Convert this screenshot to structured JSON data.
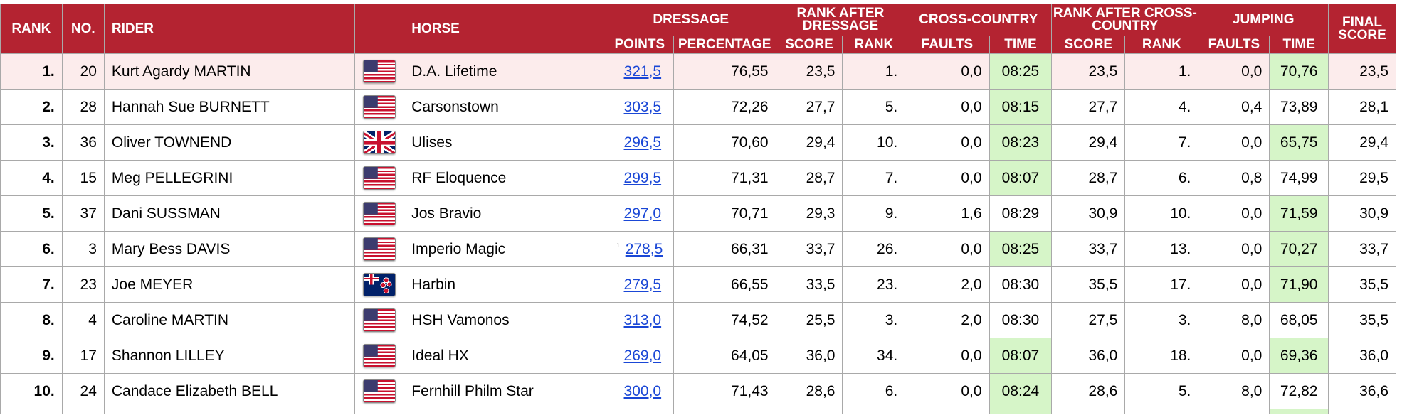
{
  "headers": {
    "rank": "RANK",
    "no": "NO.",
    "rider": "RIDER",
    "horse": "HORSE",
    "dressage": "DRESSAGE",
    "rank_after_dressage": "RANK AFTER DRESSAGE",
    "cross_country": "CROSS-COUNTRY",
    "rank_after_cross_country": "RANK AFTER CROSS-COUNTRY",
    "jumping": "JUMPING",
    "final_score": "FINAL SCORE",
    "sub": {
      "points": "POINTS",
      "percentage": "PERCENTAGE",
      "score": "SCORE",
      "rank": "RANK",
      "faults": "FAULTS",
      "time": "TIME"
    }
  },
  "rows": [
    {
      "rank": "1.",
      "no": "20",
      "rider": "Kurt Agardy MARTIN",
      "flag": "us-flag-icon",
      "horse": "D.A. Lifetime",
      "note": "",
      "points": "321,5",
      "percentage": "76,55",
      "rad_score": "23,5",
      "rad_rank": "1.",
      "xc_faults": "0,0",
      "xc_time": "08:25",
      "xc_time_ok": true,
      "racc_score": "23,5",
      "racc_rank": "1.",
      "j_faults": "0,0",
      "j_time": "70,76",
      "j_time_ok": true,
      "final": "23,5",
      "highlight": true
    },
    {
      "rank": "2.",
      "no": "28",
      "rider": "Hannah Sue BURNETT",
      "flag": "us-flag-icon",
      "horse": "Carsonstown",
      "note": "",
      "points": "303,5",
      "percentage": "72,26",
      "rad_score": "27,7",
      "rad_rank": "5.",
      "xc_faults": "0,0",
      "xc_time": "08:15",
      "xc_time_ok": true,
      "racc_score": "27,7",
      "racc_rank": "4.",
      "j_faults": "0,4",
      "j_time": "73,89",
      "j_time_ok": false,
      "final": "28,1",
      "highlight": false
    },
    {
      "rank": "3.",
      "no": "36",
      "rider": "Oliver TOWNEND",
      "flag": "gb-flag-icon",
      "horse": "Ulises",
      "note": "",
      "points": "296,5",
      "percentage": "70,60",
      "rad_score": "29,4",
      "rad_rank": "10.",
      "xc_faults": "0,0",
      "xc_time": "08:23",
      "xc_time_ok": true,
      "racc_score": "29,4",
      "racc_rank": "7.",
      "j_faults": "0,0",
      "j_time": "65,75",
      "j_time_ok": true,
      "final": "29,4",
      "highlight": false
    },
    {
      "rank": "4.",
      "no": "15",
      "rider": "Meg PELLEGRINI",
      "flag": "us-flag-icon",
      "horse": "RF Eloquence",
      "note": "",
      "points": "299,5",
      "percentage": "71,31",
      "rad_score": "28,7",
      "rad_rank": "7.",
      "xc_faults": "0,0",
      "xc_time": "08:07",
      "xc_time_ok": true,
      "racc_score": "28,7",
      "racc_rank": "6.",
      "j_faults": "0,8",
      "j_time": "74,99",
      "j_time_ok": false,
      "final": "29,5",
      "highlight": false
    },
    {
      "rank": "5.",
      "no": "37",
      "rider": "Dani SUSSMAN",
      "flag": "us-flag-icon",
      "horse": "Jos Bravio",
      "note": "",
      "points": "297,0",
      "percentage": "70,71",
      "rad_score": "29,3",
      "rad_rank": "9.",
      "xc_faults": "1,6",
      "xc_time": "08:29",
      "xc_time_ok": false,
      "racc_score": "30,9",
      "racc_rank": "10.",
      "j_faults": "0,0",
      "j_time": "71,59",
      "j_time_ok": true,
      "final": "30,9",
      "highlight": false
    },
    {
      "rank": "6.",
      "no": "3",
      "rider": "Mary Bess DAVIS",
      "flag": "us-flag-icon",
      "horse": "Imperio Magic",
      "note": "¹",
      "points": "278,5",
      "percentage": "66,31",
      "rad_score": "33,7",
      "rad_rank": "26.",
      "xc_faults": "0,0",
      "xc_time": "08:25",
      "xc_time_ok": true,
      "racc_score": "33,7",
      "racc_rank": "13.",
      "j_faults": "0,0",
      "j_time": "70,27",
      "j_time_ok": true,
      "final": "33,7",
      "highlight": false
    },
    {
      "rank": "7.",
      "no": "23",
      "rider": "Joe MEYER",
      "flag": "nz-flag-icon",
      "horse": "Harbin",
      "note": "",
      "points": "279,5",
      "percentage": "66,55",
      "rad_score": "33,5",
      "rad_rank": "23.",
      "xc_faults": "2,0",
      "xc_time": "08:30",
      "xc_time_ok": false,
      "racc_score": "35,5",
      "racc_rank": "17.",
      "j_faults": "0,0",
      "j_time": "71,90",
      "j_time_ok": true,
      "final": "35,5",
      "highlight": false
    },
    {
      "rank": "8.",
      "no": "4",
      "rider": "Caroline MARTIN",
      "flag": "us-flag-icon",
      "horse": "HSH Vamonos",
      "note": "",
      "points": "313,0",
      "percentage": "74,52",
      "rad_score": "25,5",
      "rad_rank": "3.",
      "xc_faults": "2,0",
      "xc_time": "08:30",
      "xc_time_ok": false,
      "racc_score": "27,5",
      "racc_rank": "3.",
      "j_faults": "8,0",
      "j_time": "68,05",
      "j_time_ok": false,
      "final": "35,5",
      "highlight": false
    },
    {
      "rank": "9.",
      "no": "17",
      "rider": "Shannon LILLEY",
      "flag": "us-flag-icon",
      "horse": "Ideal HX",
      "note": "",
      "points": "269,0",
      "percentage": "64,05",
      "rad_score": "36,0",
      "rad_rank": "34.",
      "xc_faults": "0,0",
      "xc_time": "08:07",
      "xc_time_ok": true,
      "racc_score": "36,0",
      "racc_rank": "18.",
      "j_faults": "0,0",
      "j_time": "69,36",
      "j_time_ok": true,
      "final": "36,0",
      "highlight": false
    },
    {
      "rank": "10.",
      "no": "24",
      "rider": "Candace Elizabeth BELL",
      "flag": "us-flag-icon",
      "horse": "Fernhill Philm Star",
      "note": "",
      "points": "300,0",
      "percentage": "71,43",
      "rad_score": "28,6",
      "rad_rank": "6.",
      "xc_faults": "0,0",
      "xc_time": "08:24",
      "xc_time_ok": true,
      "racc_score": "28,6",
      "racc_rank": "5.",
      "j_faults": "8,0",
      "j_time": "72,82",
      "j_time_ok": false,
      "final": "36,6",
      "highlight": false
    }
  ],
  "colors": {
    "header_bg": "#b42331",
    "header_text": "#ffffff",
    "highlight_row": "#fcecec",
    "within_time": "#d6f5c8",
    "link": "#1a47d6",
    "grid": "#a9a9a9"
  }
}
